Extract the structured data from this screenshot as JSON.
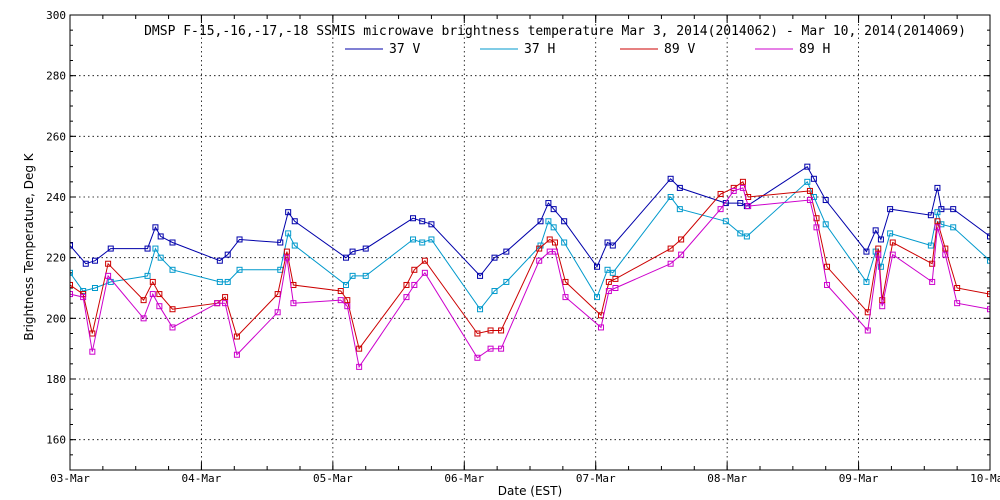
{
  "chart_data": {
    "type": "line",
    "title": "DMSP F-15,-16,-17,-18 SSMIS microwave brightness temperature Mar  3, 2014(2014062) - Mar 10, 2014(2014069)",
    "xlabel": "Date (EST)",
    "ylabel": "Brightness Temperature, Deg K",
    "ylim": [
      150,
      300
    ],
    "xlim": [
      0,
      7
    ],
    "yticks": [
      "160",
      "180",
      "200",
      "220",
      "240",
      "260",
      "280",
      "300"
    ],
    "xticks": [
      "03-Mar",
      "04-Mar",
      "05-Mar",
      "06-Mar",
      "07-Mar",
      "08-Mar",
      "09-Mar",
      "10-Mar"
    ],
    "grid": true,
    "legend_position": "top-center",
    "series": [
      {
        "name": "37 V",
        "color": "#0000aa",
        "points": [
          [
            0,
            224
          ],
          [
            0.12,
            218
          ],
          [
            0.19,
            219
          ],
          [
            0.31,
            223
          ],
          [
            0.59,
            223
          ],
          [
            0.65,
            230
          ],
          [
            0.69,
            227
          ],
          [
            0.78,
            225
          ],
          [
            1.14,
            219
          ],
          [
            1.2,
            221
          ],
          [
            1.29,
            226
          ],
          [
            1.6,
            225
          ],
          [
            1.66,
            235
          ],
          [
            1.71,
            232
          ],
          [
            2.1,
            220
          ],
          [
            2.15,
            222
          ],
          [
            2.25,
            223
          ],
          [
            2.61,
            233
          ],
          [
            2.68,
            232
          ],
          [
            2.75,
            231
          ],
          [
            3.12,
            214
          ],
          [
            3.23,
            220
          ],
          [
            3.32,
            222
          ],
          [
            3.58,
            232
          ],
          [
            3.64,
            238
          ],
          [
            3.68,
            236
          ],
          [
            3.76,
            232
          ],
          [
            4.01,
            217
          ],
          [
            4.09,
            225
          ],
          [
            4.13,
            224
          ],
          [
            4.57,
            246
          ],
          [
            4.64,
            243
          ],
          [
            4.99,
            238
          ],
          [
            5.1,
            238
          ],
          [
            5.15,
            237
          ],
          [
            5.61,
            250
          ],
          [
            5.66,
            246
          ],
          [
            5.75,
            239
          ],
          [
            6.06,
            222
          ],
          [
            6.13,
            229
          ],
          [
            6.17,
            226
          ],
          [
            6.24,
            236
          ],
          [
            6.55,
            234
          ],
          [
            6.6,
            243
          ],
          [
            6.63,
            236
          ],
          [
            6.72,
            236
          ],
          [
            7,
            227
          ]
        ]
      },
      {
        "name": "37 H",
        "color": "#0099cc",
        "points": [
          [
            0,
            215
          ],
          [
            0.1,
            209
          ],
          [
            0.19,
            210
          ],
          [
            0.31,
            212
          ],
          [
            0.59,
            214
          ],
          [
            0.65,
            223
          ],
          [
            0.69,
            220
          ],
          [
            0.78,
            216
          ],
          [
            1.14,
            212
          ],
          [
            1.2,
            212
          ],
          [
            1.29,
            216
          ],
          [
            1.6,
            216
          ],
          [
            1.66,
            228
          ],
          [
            1.71,
            224
          ],
          [
            2.1,
            211
          ],
          [
            2.15,
            214
          ],
          [
            2.25,
            214
          ],
          [
            2.61,
            226
          ],
          [
            2.68,
            225
          ],
          [
            2.75,
            226
          ],
          [
            3.12,
            203
          ],
          [
            3.23,
            209
          ],
          [
            3.32,
            212
          ],
          [
            3.58,
            224
          ],
          [
            3.64,
            232
          ],
          [
            3.68,
            230
          ],
          [
            3.76,
            225
          ],
          [
            4.01,
            207
          ],
          [
            4.09,
            216
          ],
          [
            4.13,
            215
          ],
          [
            4.57,
            240
          ],
          [
            4.64,
            236
          ],
          [
            4.99,
            232
          ],
          [
            5.1,
            228
          ],
          [
            5.15,
            227
          ],
          [
            5.61,
            245
          ],
          [
            5.66,
            240
          ],
          [
            5.75,
            231
          ],
          [
            6.06,
            212
          ],
          [
            6.13,
            222
          ],
          [
            6.17,
            217
          ],
          [
            6.24,
            228
          ],
          [
            6.55,
            224
          ],
          [
            6.6,
            235
          ],
          [
            6.63,
            231
          ],
          [
            6.72,
            230
          ],
          [
            7,
            219
          ]
        ]
      },
      {
        "name": "89 V",
        "color": "#cc0000",
        "points": [
          [
            0,
            211
          ],
          [
            0.1,
            208
          ],
          [
            0.17,
            195
          ],
          [
            0.29,
            218
          ],
          [
            0.56,
            206
          ],
          [
            0.63,
            212
          ],
          [
            0.68,
            208
          ],
          [
            0.78,
            203
          ],
          [
            1.12,
            205
          ],
          [
            1.18,
            207
          ],
          [
            1.27,
            194
          ],
          [
            1.58,
            208
          ],
          [
            1.65,
            222
          ],
          [
            1.7,
            211
          ],
          [
            2.06,
            209
          ],
          [
            2.11,
            206
          ],
          [
            2.2,
            190
          ],
          [
            2.56,
            211
          ],
          [
            2.62,
            216
          ],
          [
            2.7,
            219
          ],
          [
            3.1,
            195
          ],
          [
            3.2,
            196
          ],
          [
            3.28,
            196
          ],
          [
            3.57,
            223
          ],
          [
            3.65,
            226
          ],
          [
            3.69,
            225
          ],
          [
            3.77,
            212
          ],
          [
            4.04,
            201
          ],
          [
            4.1,
            212
          ],
          [
            4.15,
            213
          ],
          [
            4.57,
            223
          ],
          [
            4.65,
            226
          ],
          [
            4.95,
            241
          ],
          [
            5.05,
            243
          ],
          [
            5.12,
            245
          ],
          [
            5.16,
            240
          ],
          [
            5.63,
            242
          ],
          [
            5.68,
            233
          ],
          [
            5.76,
            217
          ],
          [
            6.07,
            202
          ],
          [
            6.15,
            223
          ],
          [
            6.18,
            206
          ],
          [
            6.26,
            225
          ],
          [
            6.56,
            218
          ],
          [
            6.6,
            232
          ],
          [
            6.66,
            223
          ],
          [
            6.75,
            210
          ],
          [
            7,
            208
          ]
        ]
      },
      {
        "name": "89 H",
        "color": "#cc00cc",
        "points": [
          [
            0,
            208
          ],
          [
            0.1,
            207
          ],
          [
            0.17,
            189
          ],
          [
            0.29,
            214
          ],
          [
            0.56,
            200
          ],
          [
            0.63,
            208
          ],
          [
            0.68,
            204
          ],
          [
            0.78,
            197
          ],
          [
            1.12,
            205
          ],
          [
            1.18,
            205
          ],
          [
            1.27,
            188
          ],
          [
            1.58,
            202
          ],
          [
            1.65,
            220
          ],
          [
            1.7,
            205
          ],
          [
            2.06,
            206
          ],
          [
            2.11,
            204
          ],
          [
            2.2,
            184
          ],
          [
            2.56,
            207
          ],
          [
            2.62,
            211
          ],
          [
            2.7,
            215
          ],
          [
            3.1,
            187
          ],
          [
            3.2,
            190
          ],
          [
            3.28,
            190
          ],
          [
            3.57,
            219
          ],
          [
            3.65,
            222
          ],
          [
            3.69,
            222
          ],
          [
            3.77,
            207
          ],
          [
            4.04,
            197
          ],
          [
            4.1,
            209
          ],
          [
            4.15,
            210
          ],
          [
            4.57,
            218
          ],
          [
            4.65,
            221
          ],
          [
            4.95,
            236
          ],
          [
            5.05,
            242
          ],
          [
            5.12,
            243
          ],
          [
            5.16,
            237
          ],
          [
            5.63,
            239
          ],
          [
            5.68,
            230
          ],
          [
            5.76,
            211
          ],
          [
            6.07,
            196
          ],
          [
            6.15,
            221
          ],
          [
            6.18,
            204
          ],
          [
            6.26,
            221
          ],
          [
            6.56,
            212
          ],
          [
            6.6,
            230
          ],
          [
            6.66,
            221
          ],
          [
            6.75,
            205
          ],
          [
            7,
            203
          ]
        ]
      }
    ]
  }
}
